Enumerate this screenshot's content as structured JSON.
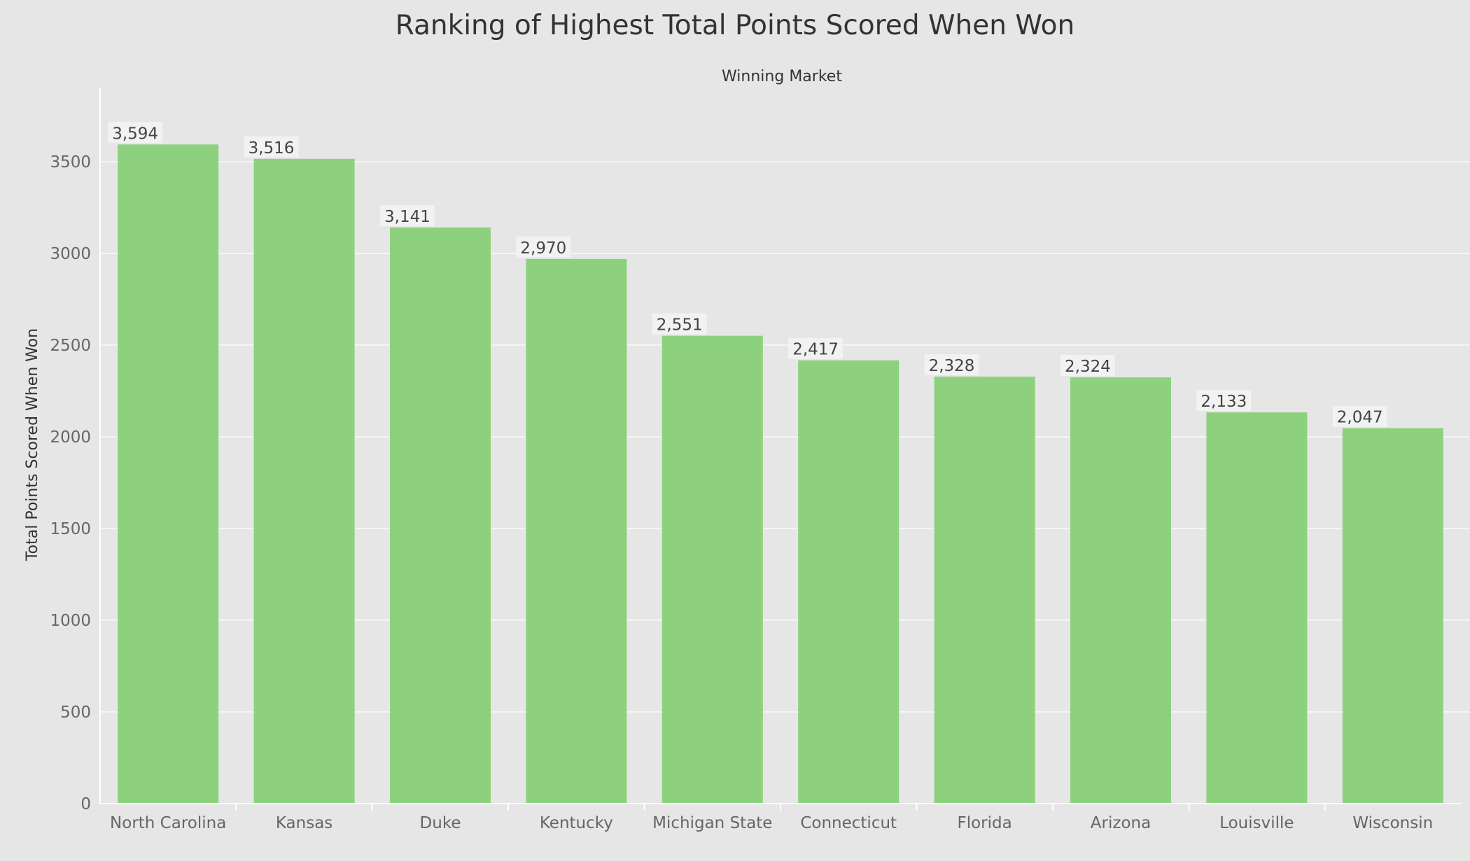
{
  "chart_data": {
    "type": "bar",
    "title": "Ranking of Highest Total Points Scored When Won",
    "column_header": "Winning Market",
    "xlabel": "",
    "ylabel": "Total Points Scored When Won",
    "categories": [
      "North Carolina",
      "Kansas",
      "Duke",
      "Kentucky",
      "Michigan State",
      "Connecticut",
      "Florida",
      "Arizona",
      "Louisville",
      "Wisconsin"
    ],
    "values": [
      3594,
      3516,
      3141,
      2970,
      2551,
      2417,
      2328,
      2324,
      2133,
      2047
    ],
    "value_labels": [
      "3,594",
      "3,516",
      "3,141",
      "2,970",
      "2,551",
      "2,417",
      "2,328",
      "2,324",
      "2,133",
      "2,047"
    ],
    "yticks": [
      0,
      500,
      1000,
      1500,
      2000,
      2500,
      3000,
      3500
    ],
    "ylim": [
      0,
      3900
    ],
    "grid": true,
    "legend": "none",
    "colors": {
      "bar": "#8dd17f",
      "background": "#e6e6e6",
      "grid": "#f5f5f5",
      "label_bg": "#f2f2f2"
    }
  }
}
